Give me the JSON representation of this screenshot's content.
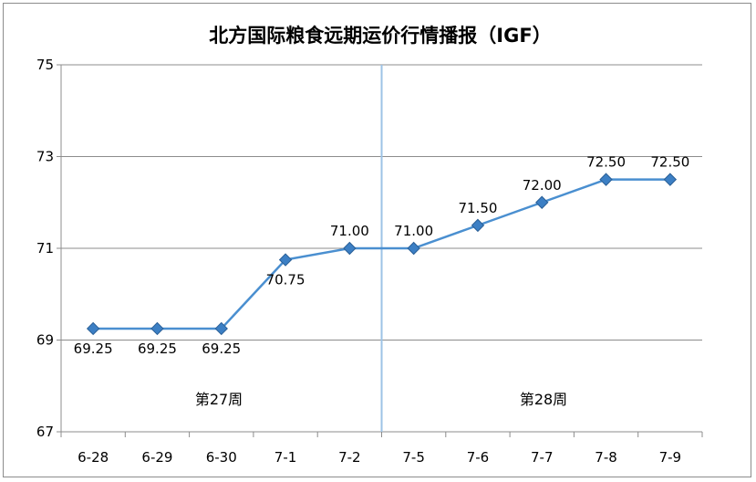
{
  "chart_data": {
    "type": "line",
    "title": "北方国际粮食远期运价行情播报（IGF）",
    "categories": [
      "6-28",
      "6-29",
      "6-30",
      "7-1",
      "7-2",
      "7-5",
      "7-6",
      "7-7",
      "7-8",
      "7-9"
    ],
    "series": [
      {
        "values": [
          69.25,
          69.25,
          69.25,
          70.75,
          71.0,
          71.0,
          71.5,
          72.0,
          72.5,
          72.5
        ],
        "labels": [
          "69.25",
          "69.25",
          "69.25",
          "70.75",
          "71.00",
          "71.00",
          "71.50",
          "72.00",
          "72.50",
          "72.50"
        ],
        "color": "#4a8fd0"
      }
    ],
    "ylim": [
      67,
      75
    ],
    "yticks": [
      "67",
      "69",
      "71",
      "73",
      "75"
    ],
    "grid": true,
    "week_labels": [
      "第27周",
      "第28周"
    ],
    "divider_color": "#9dc3e6"
  }
}
